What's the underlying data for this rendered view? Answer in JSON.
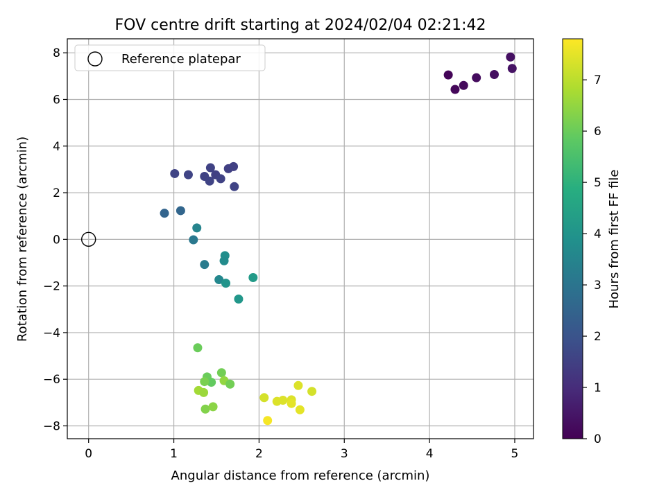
{
  "chart_data": {
    "type": "scatter",
    "title": "FOV centre drift starting at 2024/02/04 02:21:42",
    "xlabel": "Angular distance from reference (arcmin)",
    "ylabel": "Rotation from reference (arcmin)",
    "xlim": [
      -0.25,
      5.22
    ],
    "ylim": [
      -8.55,
      8.6
    ],
    "xticks": [
      0,
      1,
      2,
      3,
      4,
      5
    ],
    "yticks": [
      -8,
      -6,
      -4,
      -2,
      0,
      2,
      4,
      6,
      8
    ],
    "xtick_labels": [
      "0",
      "1",
      "2",
      "3",
      "4",
      "5"
    ],
    "ytick_labels": [
      "−8",
      "−6",
      "−4",
      "−2",
      "0",
      "2",
      "4",
      "6",
      "8"
    ],
    "grid": true,
    "legend_placement": "top-left",
    "reference": {
      "label": "Reference platepar",
      "x": 0,
      "y": 0
    },
    "colorbar": {
      "label": "Hours from first FF file",
      "min": 0,
      "max": 7.8,
      "ticks": [
        0,
        1,
        2,
        3,
        4,
        5,
        6,
        7
      ],
      "colormap": "viridis"
    },
    "points": [
      {
        "x": 4.22,
        "y": 7.05,
        "h": 0.1
      },
      {
        "x": 4.3,
        "y": 6.43,
        "h": 0.15
      },
      {
        "x": 4.4,
        "y": 6.6,
        "h": 0.2
      },
      {
        "x": 4.55,
        "y": 6.93,
        "h": 0.25
      },
      {
        "x": 4.76,
        "y": 7.07,
        "h": 0.3
      },
      {
        "x": 4.95,
        "y": 7.82,
        "h": 0.35
      },
      {
        "x": 4.97,
        "y": 7.33,
        "h": 0.4
      },
      {
        "x": 1.01,
        "y": 2.82,
        "h": 1.6
      },
      {
        "x": 1.17,
        "y": 2.77,
        "h": 1.6
      },
      {
        "x": 1.36,
        "y": 2.7,
        "h": 1.55
      },
      {
        "x": 1.43,
        "y": 3.07,
        "h": 1.55
      },
      {
        "x": 1.42,
        "y": 2.5,
        "h": 1.6
      },
      {
        "x": 1.49,
        "y": 2.77,
        "h": 1.5
      },
      {
        "x": 1.55,
        "y": 2.6,
        "h": 1.55
      },
      {
        "x": 1.64,
        "y": 3.03,
        "h": 1.5
      },
      {
        "x": 1.7,
        "y": 3.12,
        "h": 1.5
      },
      {
        "x": 1.71,
        "y": 2.26,
        "h": 1.6
      },
      {
        "x": 0.89,
        "y": 1.12,
        "h": 2.5
      },
      {
        "x": 1.08,
        "y": 1.23,
        "h": 2.55
      },
      {
        "x": 1.27,
        "y": 0.49,
        "h": 3.5
      },
      {
        "x": 1.23,
        "y": -0.02,
        "h": 3.1
      },
      {
        "x": 1.36,
        "y": -1.08,
        "h": 3.2
      },
      {
        "x": 1.6,
        "y": -0.7,
        "h": 3.8
      },
      {
        "x": 1.59,
        "y": -0.92,
        "h": 3.7
      },
      {
        "x": 1.53,
        "y": -1.73,
        "h": 3.6
      },
      {
        "x": 1.61,
        "y": -1.88,
        "h": 4.0
      },
      {
        "x": 1.93,
        "y": -1.64,
        "h": 4.2
      },
      {
        "x": 1.76,
        "y": -2.56,
        "h": 4.1
      },
      {
        "x": 1.28,
        "y": -4.65,
        "h": 6.0
      },
      {
        "x": 1.56,
        "y": -5.72,
        "h": 6.1
      },
      {
        "x": 1.39,
        "y": -5.9,
        "h": 6.0
      },
      {
        "x": 1.44,
        "y": -6.13,
        "h": 5.9
      },
      {
        "x": 1.36,
        "y": -6.1,
        "h": 6.2
      },
      {
        "x": 1.59,
        "y": -6.06,
        "h": 6.5
      },
      {
        "x": 1.66,
        "y": -6.21,
        "h": 6.1
      },
      {
        "x": 1.29,
        "y": -6.48,
        "h": 6.7
      },
      {
        "x": 1.35,
        "y": -6.57,
        "h": 6.6
      },
      {
        "x": 1.37,
        "y": -7.28,
        "h": 6.3
      },
      {
        "x": 1.46,
        "y": -7.18,
        "h": 6.4
      },
      {
        "x": 2.06,
        "y": -6.79,
        "h": 7.3
      },
      {
        "x": 2.21,
        "y": -6.95,
        "h": 7.4
      },
      {
        "x": 2.28,
        "y": -6.9,
        "h": 7.4
      },
      {
        "x": 2.38,
        "y": -6.88,
        "h": 7.4
      },
      {
        "x": 2.38,
        "y": -7.04,
        "h": 7.5
      },
      {
        "x": 2.46,
        "y": -6.27,
        "h": 7.4
      },
      {
        "x": 2.48,
        "y": -7.31,
        "h": 7.5
      },
      {
        "x": 2.62,
        "y": -6.52,
        "h": 7.3
      },
      {
        "x": 2.1,
        "y": -7.77,
        "h": 7.7
      }
    ]
  }
}
